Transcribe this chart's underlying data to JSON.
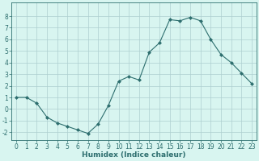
{
  "x": [
    0,
    1,
    2,
    3,
    4,
    5,
    6,
    7,
    8,
    9,
    10,
    11,
    12,
    13,
    14,
    15,
    16,
    17,
    18,
    19,
    20,
    21,
    22,
    23
  ],
  "y": [
    1,
    1,
    0.5,
    -0.7,
    -1.2,
    -1.5,
    -1.8,
    -2.1,
    -1.3,
    0.3,
    2.4,
    2.8,
    2.5,
    4.9,
    5.7,
    7.7,
    7.6,
    7.9,
    7.6,
    6.0,
    4.7,
    4.0,
    3.1,
    2.2
  ],
  "line_color": "#2d6e6e",
  "marker": "D",
  "marker_size": 2.0,
  "bg_color": "#d8f5f0",
  "grid_color": "#aecfcf",
  "xlabel": "Humidex (Indice chaleur)",
  "xlim": [
    -0.5,
    23.5
  ],
  "ylim": [
    -2.7,
    9.2
  ],
  "yticks": [
    -2,
    -1,
    0,
    1,
    2,
    3,
    4,
    5,
    6,
    7,
    8
  ],
  "xticks": [
    0,
    1,
    2,
    3,
    4,
    5,
    6,
    7,
    8,
    9,
    10,
    11,
    12,
    13,
    14,
    15,
    16,
    17,
    18,
    19,
    20,
    21,
    22,
    23
  ],
  "label_fontsize": 6.5,
  "tick_fontsize": 5.5
}
